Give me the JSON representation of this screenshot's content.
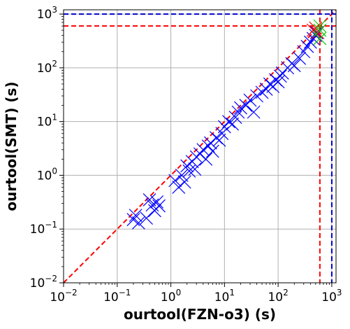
{
  "chart_data": {
    "type": "scatter",
    "xlabel": "ourtool(FZN-o3) (s)",
    "ylabel": "ourtool(SMT) (s)",
    "xscale": "log",
    "yscale": "log",
    "xlim": [
      0.01,
      1200
    ],
    "ylim": [
      0.01,
      1200
    ],
    "xticks": [
      0.01,
      0.1,
      1,
      10,
      100,
      1000
    ],
    "yticks": [
      0.01,
      0.1,
      1,
      10,
      100,
      1000
    ],
    "xtick_labels": [
      {
        "base": "10",
        "exp": "−2"
      },
      {
        "base": "10",
        "exp": "−1"
      },
      {
        "base": "10",
        "exp": "0"
      },
      {
        "base": "10",
        "exp": "1"
      },
      {
        "base": "10",
        "exp": "2"
      },
      {
        "base": "10",
        "exp": "3"
      }
    ],
    "ytick_labels": [
      {
        "base": "10",
        "exp": "−2"
      },
      {
        "base": "10",
        "exp": "−1"
      },
      {
        "base": "10",
        "exp": "0"
      },
      {
        "base": "10",
        "exp": "1"
      },
      {
        "base": "10",
        "exp": "2"
      },
      {
        "base": "10",
        "exp": "3"
      }
    ],
    "grid": true,
    "reference_lines": [
      {
        "kind": "diagonal",
        "color": "#ff0000",
        "style": "dashed"
      },
      {
        "kind": "vertical",
        "x": 600,
        "color": "#ff0000",
        "style": "dashed"
      },
      {
        "kind": "horizontal",
        "y": 600,
        "color": "#ff0000",
        "style": "dashed"
      },
      {
        "kind": "vertical",
        "x": 1000,
        "color": "#0000cc",
        "style": "dashed"
      },
      {
        "kind": "horizontal",
        "y": 1000,
        "color": "#0000cc",
        "style": "dashed"
      }
    ],
    "series": [
      {
        "marker": "x",
        "color": "#0000ff",
        "x": [
          0.2,
          0.22,
          0.25,
          0.35,
          0.4,
          0.45,
          0.5,
          0.55,
          0.6,
          1.2,
          1.4,
          1.6,
          1.8,
          2.0,
          2.2,
          2.5,
          2.8,
          3.0,
          3.5,
          4.0,
          4.5,
          5.0,
          5.5,
          6.0,
          7.0,
          8.0,
          9.0,
          10,
          12,
          14,
          16,
          18,
          20,
          25,
          30,
          35,
          40,
          50,
          60,
          70,
          80,
          90,
          100,
          110,
          120,
          150,
          180,
          200,
          250,
          300,
          350,
          400,
          450,
          500,
          520
        ],
        "y": [
          0.15,
          0.18,
          0.13,
          0.16,
          0.35,
          0.28,
          0.22,
          0.32,
          0.27,
          0.8,
          0.6,
          1.0,
          0.75,
          1.5,
          1.2,
          1.8,
          1.3,
          2.2,
          2.5,
          3.0,
          2.0,
          3.5,
          4.0,
          2.8,
          5.0,
          4.5,
          6.0,
          8.0,
          10,
          9.0,
          12,
          15,
          18,
          20,
          25,
          15,
          30,
          35,
          40,
          50,
          45,
          60,
          55,
          70,
          80,
          100,
          120,
          110,
          150,
          200,
          250,
          300,
          350,
          400,
          450
        ]
      },
      {
        "marker": "x",
        "color": "#ff0000",
        "x": [
          450,
          500,
          550
        ],
        "y": [
          500,
          550,
          450
        ]
      },
      {
        "marker": "x",
        "color": "#00cc00",
        "x": [
          600,
          600,
          600
        ],
        "y": [
          600,
          500,
          350
        ]
      }
    ]
  }
}
